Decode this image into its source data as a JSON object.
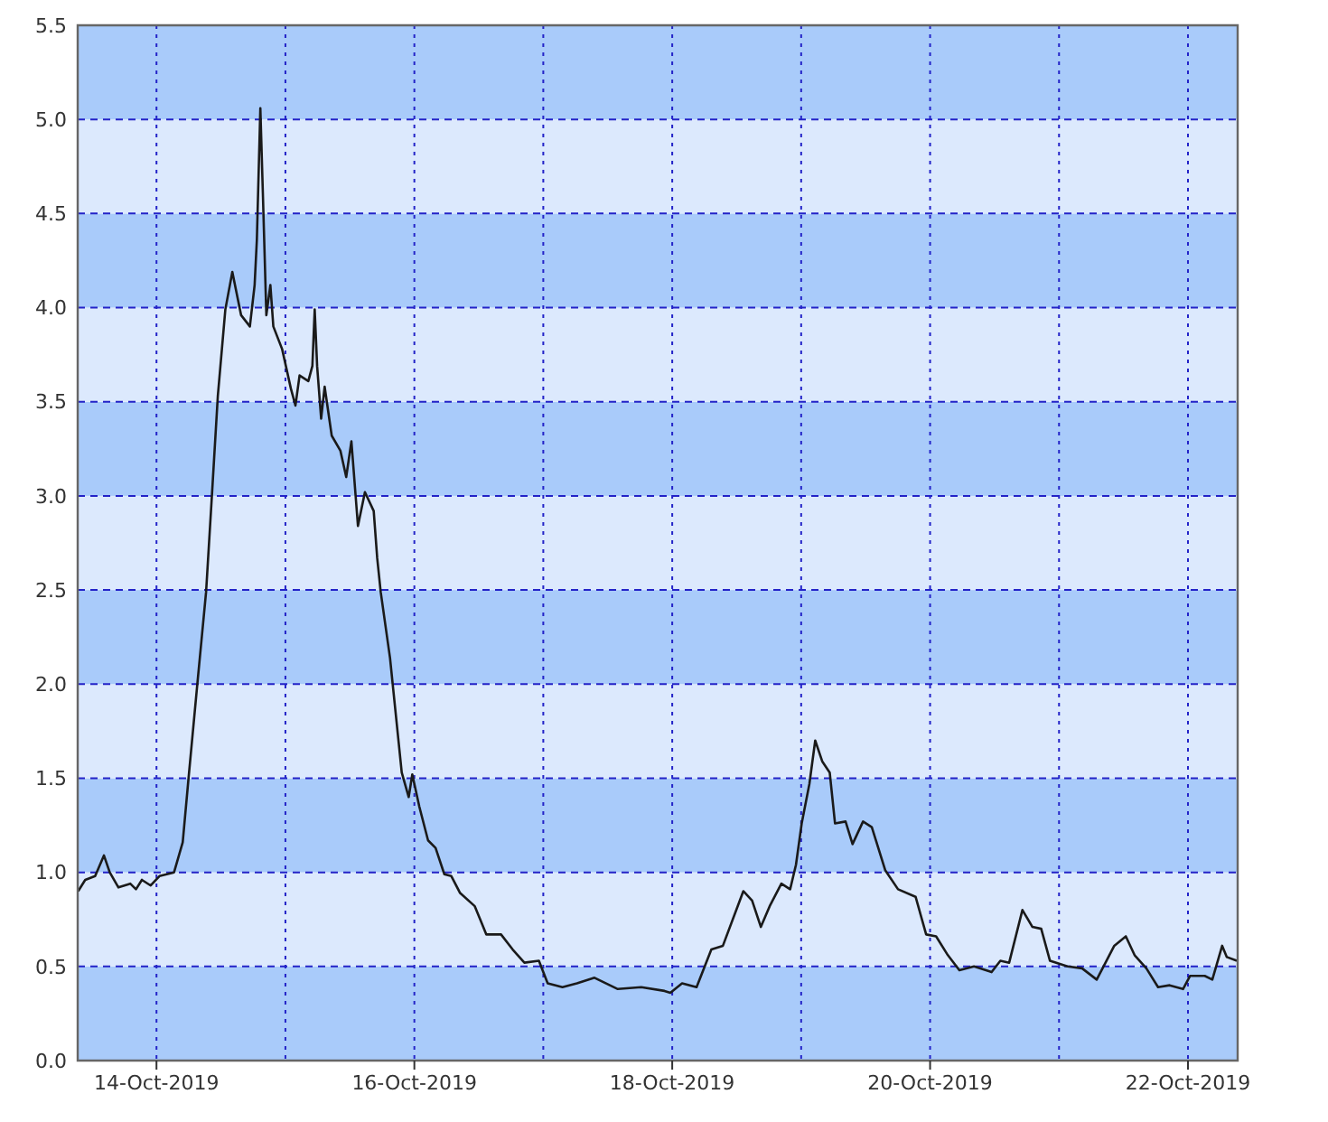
{
  "chart_data": {
    "type": "line",
    "xlim": [
      "2019-10-13T09:20",
      "2019-10-22T09:15"
    ],
    "ylim": [
      0,
      5.5
    ],
    "yticks": [
      {
        "value": 0,
        "label": "0.0"
      },
      {
        "value": 0.5,
        "label": "0.5"
      },
      {
        "value": 1,
        "label": "1.0"
      },
      {
        "value": 1.5,
        "label": "1.5"
      },
      {
        "value": 2,
        "label": "2.0"
      },
      {
        "value": 2.5,
        "label": "2.5"
      },
      {
        "value": 3,
        "label": "3.0"
      },
      {
        "value": 3.5,
        "label": "3.5"
      },
      {
        "value": 4,
        "label": "4.0"
      },
      {
        "value": 4.5,
        "label": "4.5"
      },
      {
        "value": 5,
        "label": "5.0"
      },
      {
        "value": 5.5,
        "label": "5.5"
      }
    ],
    "xticks": [
      {
        "value": "2019-10-14",
        "label": "14-Oct-2019"
      },
      {
        "value": "2019-10-15",
        "label": null
      },
      {
        "value": "2019-10-16",
        "label": "16-Oct-2019"
      },
      {
        "value": "2019-10-17",
        "label": null
      },
      {
        "value": "2019-10-18",
        "label": "18-Oct-2019"
      },
      {
        "value": "2019-10-19",
        "label": null
      },
      {
        "value": "2019-10-20",
        "label": "20-Oct-2019"
      },
      {
        "value": "2019-10-21",
        "label": null
      },
      {
        "value": "2019-10-22",
        "label": "22-Oct-2019"
      }
    ],
    "bands": [
      {
        "axis": "y",
        "from": 0,
        "to": 0.5,
        "color": "#a9cbfa"
      },
      {
        "axis": "y",
        "from": 0.5,
        "to": 1,
        "color": "#dce9fd"
      },
      {
        "axis": "y",
        "from": 1,
        "to": 1.5,
        "color": "#a9cbfa"
      },
      {
        "axis": "y",
        "from": 1.5,
        "to": 2,
        "color": "#dce9fd"
      },
      {
        "axis": "y",
        "from": 2,
        "to": 2.5,
        "color": "#a9cbfa"
      },
      {
        "axis": "y",
        "from": 2.5,
        "to": 3,
        "color": "#dce9fd"
      },
      {
        "axis": "y",
        "from": 3,
        "to": 3.5,
        "color": "#a9cbfa"
      },
      {
        "axis": "y",
        "from": 3.5,
        "to": 4,
        "color": "#dce9fd"
      },
      {
        "axis": "y",
        "from": 4,
        "to": 4.5,
        "color": "#a9cbfa"
      },
      {
        "axis": "y",
        "from": 4.5,
        "to": 5,
        "color": "#dce9fd"
      },
      {
        "axis": "y",
        "from": 5,
        "to": 5.5,
        "color": "#a9cbfa"
      }
    ],
    "grid": true,
    "marker": "none",
    "line_style": "solid",
    "series": [
      {
        "color": "#1a1a1a",
        "x": [
          "2019-10-13T09:25",
          "2019-10-13T10:44",
          "2019-10-13T12:35",
          "2019-10-13T14:13",
          "2019-10-13T15:18",
          "2019-10-13T16:55",
          "2019-10-13T19:07",
          "2019-10-13T20:11",
          "2019-10-13T21:17",
          "2019-10-13T22:55",
          "2019-10-14T00:33",
          "2019-10-14T03:16",
          "2019-10-14T04:53",
          "2019-10-14T05:58",
          "2019-10-14T07:36",
          "2019-10-14T09:14",
          "2019-10-14T10:20",
          "2019-10-14T11:25",
          "2019-10-14T12:49",
          "2019-10-14T14:07",
          "2019-10-14T15:45",
          "2019-10-14T17:23",
          "2019-10-14T18:16",
          "2019-10-14T18:41",
          "2019-10-14T19:20",
          "2019-10-14T19:48",
          "2019-10-14T20:27",
          "2019-10-14T21:12",
          "2019-10-14T21:45",
          "2019-10-14T23:23",
          "2019-10-15T01:01",
          "2019-10-15T01:52",
          "2019-10-15T02:38",
          "2019-10-15T04:16",
          "2019-10-15T05:01",
          "2019-10-15T05:27",
          "2019-10-15T05:54",
          "2019-10-15T06:39",
          "2019-10-15T07:18",
          "2019-10-15T08:37",
          "2019-10-15T10:14",
          "2019-10-15T11:19",
          "2019-10-15T12:17",
          "2019-10-15T13:30",
          "2019-10-15T14:48",
          "2019-10-15T16:26",
          "2019-10-15T17:05",
          "2019-10-15T17:44",
          "2019-10-15T19:28",
          "2019-10-15T21:39",
          "2019-10-15T22:57",
          "2019-10-15T23:37",
          "2019-10-16T00:55",
          "2019-10-16T02:33",
          "2019-10-16T03:57",
          "2019-10-16T05:35",
          "2019-10-16T06:53",
          "2019-10-16T08:31",
          "2019-10-16T11:15",
          "2019-10-16T13:24",
          "2019-10-16T16:08",
          "2019-10-16T18:18",
          "2019-10-16T20:29",
          "2019-10-16T23:11",
          "2019-10-17T00:49",
          "2019-10-17T03:34",
          "2019-10-17T06:16",
          "2019-10-17T09:32",
          "2019-10-17T13:52",
          "2019-10-17T18:14",
          "2019-10-17T22:34",
          "2019-10-17T23:39",
          "2019-10-18T01:50",
          "2019-10-18T04:32",
          "2019-10-18T07:17",
          "2019-10-18T09:26",
          "2019-10-18T13:14",
          "2019-10-18T14:52",
          "2019-10-18T16:30",
          "2019-10-18T18:08",
          "2019-10-18T20:19",
          "2019-10-18T21:57",
          "2019-10-18T23:02",
          "2019-10-19T00:06",
          "2019-10-19T01:32",
          "2019-10-19T02:37",
          "2019-10-19T03:55",
          "2019-10-19T05:19",
          "2019-10-19T06:18",
          "2019-10-19T08:16",
          "2019-10-19T09:34",
          "2019-10-19T11:31",
          "2019-10-19T13:09",
          "2019-10-19T15:40",
          "2019-10-19T18:02",
          "2019-10-19T21:18",
          "2019-10-19T23:16",
          "2019-10-20T01:07",
          "2019-10-20T03:18",
          "2019-10-20T05:27",
          "2019-10-20T08:11",
          "2019-10-20T11:27",
          "2019-10-20T13:05",
          "2019-10-20T14:43",
          "2019-10-20T17:11",
          "2019-10-20T19:03",
          "2019-10-20T20:41",
          "2019-10-20T22:19",
          "2019-10-21T01:34",
          "2019-10-21T04:17",
          "2019-10-21T07:01",
          "2019-10-21T10:17",
          "2019-10-21T12:26",
          "2019-10-21T14:04",
          "2019-10-21T16:15",
          "2019-10-21T18:26",
          "2019-10-21T20:35",
          "2019-10-21T23:05",
          "2019-10-22T00:24",
          "2019-10-22T03:07",
          "2019-10-22T04:32",
          "2019-10-22T06:22",
          "2019-10-22T07:14",
          "2019-10-22T09:06"
        ],
        "values": [
          0.9,
          0.96,
          0.98,
          1.09,
          1.0,
          0.92,
          0.94,
          0.91,
          0.96,
          0.93,
          0.98,
          1.0,
          1.16,
          1.5,
          2.0,
          2.49,
          3.01,
          3.53,
          3.99,
          4.19,
          3.96,
          3.9,
          4.12,
          4.36,
          5.06,
          4.61,
          3.96,
          4.12,
          3.9,
          3.78,
          3.57,
          3.48,
          3.64,
          3.61,
          3.69,
          3.99,
          3.69,
          3.41,
          3.58,
          3.32,
          3.24,
          3.1,
          3.29,
          2.84,
          3.02,
          2.92,
          2.67,
          2.49,
          2.14,
          1.53,
          1.4,
          1.52,
          1.35,
          1.17,
          1.13,
          0.99,
          0.98,
          0.89,
          0.82,
          0.67,
          0.67,
          0.59,
          0.52,
          0.53,
          0.41,
          0.39,
          0.41,
          0.44,
          0.38,
          0.39,
          0.37,
          0.36,
          0.41,
          0.39,
          0.59,
          0.61,
          0.9,
          0.85,
          0.71,
          0.82,
          0.94,
          0.91,
          1.04,
          1.26,
          1.47,
          1.7,
          1.59,
          1.53,
          1.26,
          1.27,
          1.15,
          1.27,
          1.24,
          1.01,
          0.91,
          0.87,
          0.67,
          0.66,
          0.56,
          0.48,
          0.5,
          0.47,
          0.53,
          0.52,
          0.8,
          0.71,
          0.7,
          0.53,
          0.5,
          0.49,
          0.43,
          0.61,
          0.66,
          0.56,
          0.49,
          0.39,
          0.4,
          0.38,
          0.45,
          0.45,
          0.43,
          0.61,
          0.55,
          0.53
        ]
      }
    ]
  }
}
